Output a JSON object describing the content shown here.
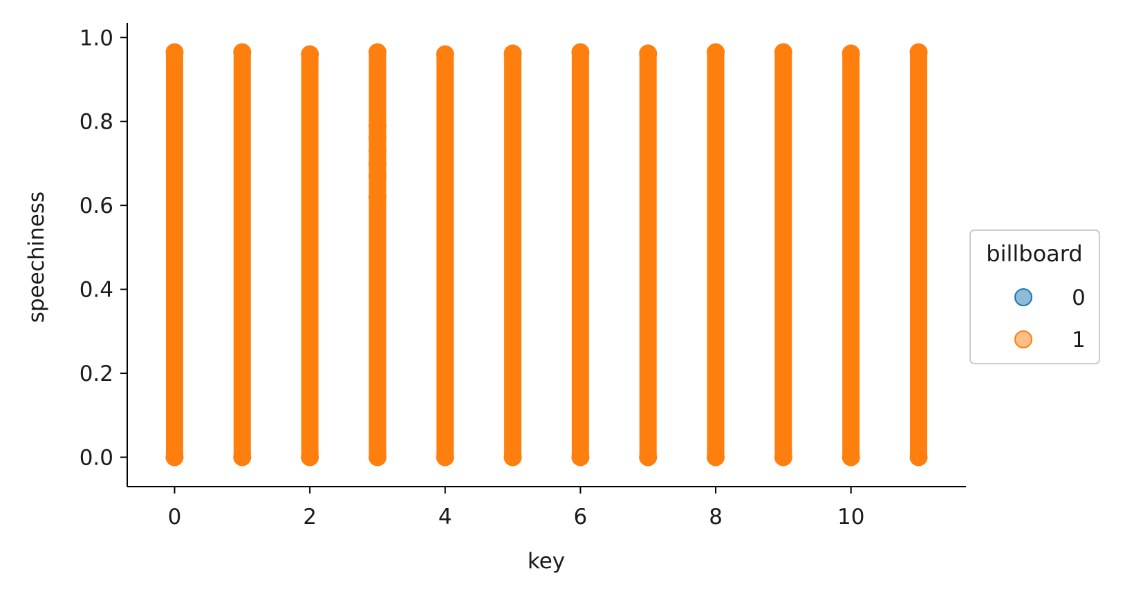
{
  "chart_data": {
    "type": "scatter",
    "title": "",
    "xlabel": "key",
    "ylabel": "speechiness",
    "xlim": [
      -0.7,
      11.7
    ],
    "ylim": [
      -0.07,
      1.035
    ],
    "xticks": [
      0,
      2,
      4,
      6,
      8,
      10
    ],
    "yticks": [
      0.0,
      0.2,
      0.4,
      0.6,
      0.8,
      1.0
    ],
    "ytick_labels": [
      "0.0",
      "0.2",
      "0.4",
      "0.6",
      "0.8",
      "1.0"
    ],
    "grid": false,
    "legend": {
      "title": "billboard",
      "placement": "right-outside",
      "entries": [
        {
          "label": "0",
          "color": "#1f77b4"
        },
        {
          "label": "1",
          "color": "#ff7f0e"
        }
      ]
    },
    "series": [
      {
        "label": "0",
        "color": "#1f77b4",
        "x_values": [
          0,
          1,
          2,
          3,
          4,
          5,
          6,
          7,
          8,
          9,
          10,
          11
        ],
        "y_range": [
          0.0,
          0.96
        ]
      },
      {
        "label": "1",
        "color": "#ff7f0e",
        "x_values": [
          0,
          1,
          2,
          3,
          4,
          5,
          6,
          7,
          8,
          9,
          10,
          11
        ],
        "y_range": [
          0.0,
          0.96
        ]
      }
    ],
    "columns": [
      {
        "x": 0,
        "ymin": 0.0,
        "ymax": 0.965
      },
      {
        "x": 1,
        "ymin": 0.0,
        "ymax": 0.965
      },
      {
        "x": 2,
        "ymin": 0.0,
        "ymax": 0.96
      },
      {
        "x": 3,
        "ymin": 0.0,
        "ymax": 0.965
      },
      {
        "x": 4,
        "ymin": 0.0,
        "ymax": 0.96
      },
      {
        "x": 5,
        "ymin": 0.0,
        "ymax": 0.962
      },
      {
        "x": 6,
        "ymin": 0.0,
        "ymax": 0.965
      },
      {
        "x": 7,
        "ymin": 0.0,
        "ymax": 0.962
      },
      {
        "x": 8,
        "ymin": 0.0,
        "ymax": 0.965
      },
      {
        "x": 9,
        "ymin": 0.0,
        "ymax": 0.965
      },
      {
        "x": 10,
        "ymin": 0.0,
        "ymax": 0.962
      },
      {
        "x": 11,
        "ymin": 0.0,
        "ymax": 0.965
      }
    ]
  }
}
